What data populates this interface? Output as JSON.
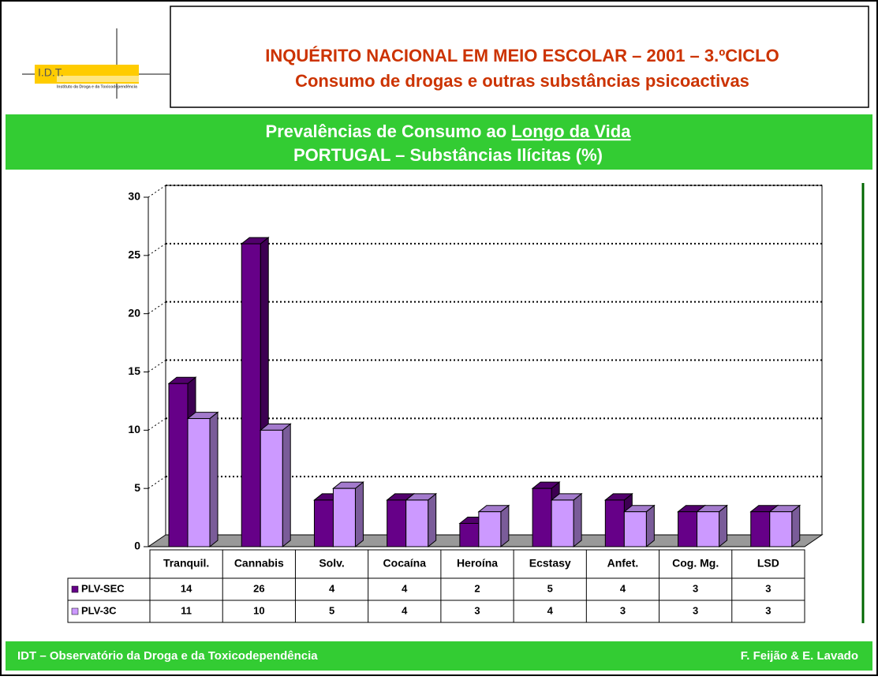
{
  "logo": {
    "name": "I.D.T.",
    "full_name": "Instituto da Droga e da Toxicodependência"
  },
  "header": {
    "title": "INQUÉRITO NACIONAL EM MEIO ESCOLAR – 2001 – 3.ºCICLO",
    "subtitle": "Consumo de drogas e outras substâncias psicoactivas"
  },
  "chart_data": {
    "type": "bar3d",
    "title": [
      "Prevalências de Consumo ao",
      "Longo da Vida"
    ],
    "subtitle": "PORTUGAL –  Substâncias Ilícitas (%)",
    "categories": [
      "Tranquil.",
      "Cannabis",
      "Solv.",
      "Cocaína",
      "Heroína",
      "Ecstasy",
      "Anfet.",
      "Cog. Mg.",
      "LSD"
    ],
    "series": [
      {
        "name": "PLV-SEC",
        "color": "#660088",
        "values": [
          14,
          26,
          4,
          4,
          2,
          5,
          4,
          3,
          3
        ]
      },
      {
        "name": "PLV-3C",
        "color": "#cc99ff",
        "values": [
          11,
          10,
          5,
          4,
          3,
          4,
          3,
          3,
          3
        ]
      }
    ],
    "ylim": [
      0,
      30
    ],
    "yticks": [
      0,
      5,
      10,
      15,
      20,
      25,
      30
    ],
    "grid": true
  },
  "footer": {
    "left": "IDT – Observatório da Droga e da Toxicodependência",
    "right": "F. Feijão & E. Lavado"
  }
}
